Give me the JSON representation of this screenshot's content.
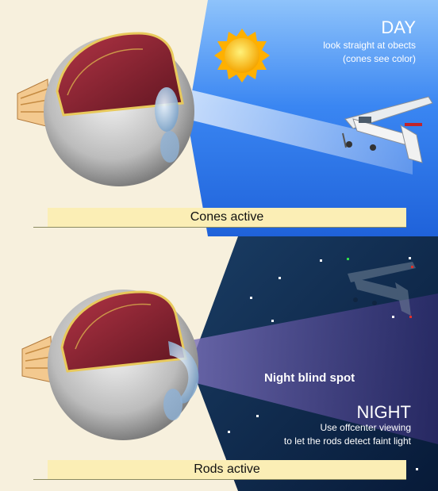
{
  "day": {
    "title": "DAY",
    "line1": "look straight at obects",
    "line2": "(cones see color)",
    "bar_label": "Cones active",
    "sky_color": "#3a86f2",
    "bg_color": "#f7f0dd"
  },
  "night": {
    "blind_spot_label": "Night blind spot",
    "title": "NIGHT",
    "line1": "Use offcenter viewing",
    "line2": "to let the rods detect faint light",
    "bar_label": "Rods active",
    "sky_color": "#102a4c"
  },
  "icons": [
    "sun-icon",
    "airplane-icon",
    "eyeball-icon",
    "star-icon"
  ]
}
